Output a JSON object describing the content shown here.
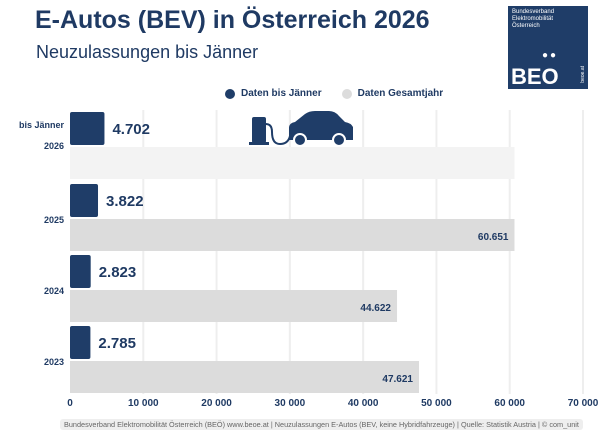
{
  "header": {
    "title": "E-Autos (BEV) in Österreich 2026",
    "subtitle": "Neuzulassungen bis Jänner"
  },
  "logo": {
    "lines": [
      "Bundesverband",
      "Elektromobilität",
      "Österreich"
    ],
    "mark": "BEO",
    "url": "beoe.at"
  },
  "colors": {
    "jan": "#1f3d68",
    "year": "#dcdcdc",
    "year_2026": "#f3f3f3",
    "grid": "#eeeeee"
  },
  "icons": [
    "charging-station-icon",
    "car-icon"
  ],
  "chart_data": {
    "type": "bar",
    "orientation": "horizontal",
    "categories": [
      "bis Jänner 2026",
      "2025",
      "2024",
      "2023"
    ],
    "series": [
      {
        "name": "Daten bis Jänner",
        "values": [
          4702,
          3822,
          2823,
          2785
        ],
        "labels": [
          "4.702",
          "3.822",
          "2.823",
          "2.785"
        ]
      },
      {
        "name": "Daten Gesamtjahr",
        "values": [
          null,
          60651,
          44622,
          47621
        ],
        "labels": [
          "",
          "60.651",
          "44.622",
          "47.621"
        ]
      }
    ],
    "xlim": [
      0,
      70000
    ],
    "xticks": [
      "0",
      "10 000",
      "20 000",
      "30 000",
      "40 000",
      "50 000",
      "60 000",
      "70 000"
    ],
    "grid": true,
    "legend": "top"
  },
  "footer": "Bundesverband Elektromobilität Österreich (BEÖ) www.beoe.at | Neuzulassungen E-Autos (BEV, keine Hybridfahrzeuge) | Quelle: Statistik Austria | © com_unit"
}
